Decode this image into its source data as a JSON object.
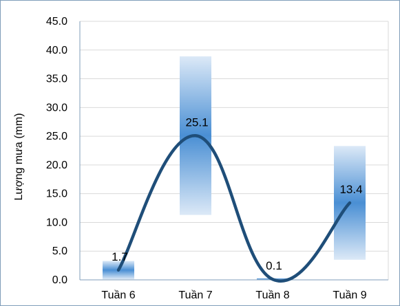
{
  "chart_data": {
    "type": "bar+line",
    "title": "",
    "xlabel": "",
    "ylabel": "Lượng mưa (mm)",
    "categories": [
      "Tuần 6",
      "Tuần 7",
      "Tuần 8",
      "Tuần 9"
    ],
    "series": [
      {
        "kind": "line",
        "values": [
          1.7,
          25.1,
          0.1,
          13.4
        ],
        "data_labels": [
          "1.7",
          "25.1",
          "0.1",
          "13.4"
        ],
        "smooth": true,
        "color": "#1f4e79"
      },
      {
        "kind": "range-bar",
        "low": [
          0.1,
          11.3,
          0.0,
          3.5
        ],
        "high": [
          3.3,
          38.9,
          0.3,
          23.3
        ],
        "color": "#4a8fd4"
      }
    ],
    "ylim": [
      0,
      45
    ],
    "yticks": [
      "0.0",
      "5.0",
      "10.0",
      "15.0",
      "20.0",
      "25.0",
      "30.0",
      "35.0",
      "40.0",
      "45.0"
    ],
    "grid": true,
    "legend": "none"
  }
}
